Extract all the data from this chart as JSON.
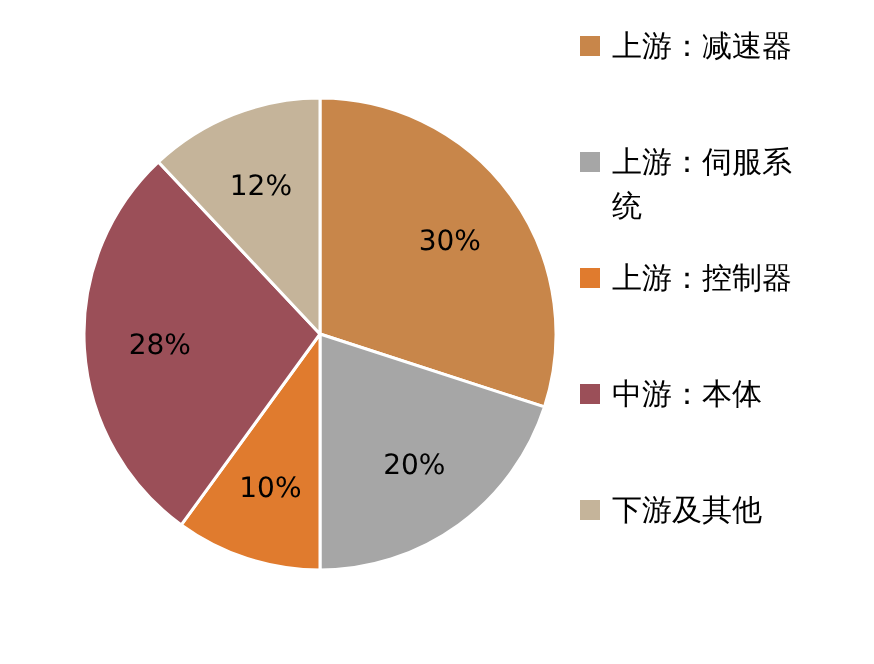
{
  "chart_data": {
    "type": "pie",
    "categories": [
      "上游：减速器",
      "上游：伺服系统",
      "上游：控制器",
      "中游：本体",
      "下游及其他"
    ],
    "values": [
      30,
      20,
      10,
      28,
      12
    ],
    "colors": [
      "#c8864a",
      "#a6a6a6",
      "#e07b2e",
      "#9b4f58",
      "#c5b49a"
    ],
    "value_labels": [
      "30%",
      "20%",
      "10%",
      "28%",
      "12%"
    ],
    "legend": "right"
  }
}
